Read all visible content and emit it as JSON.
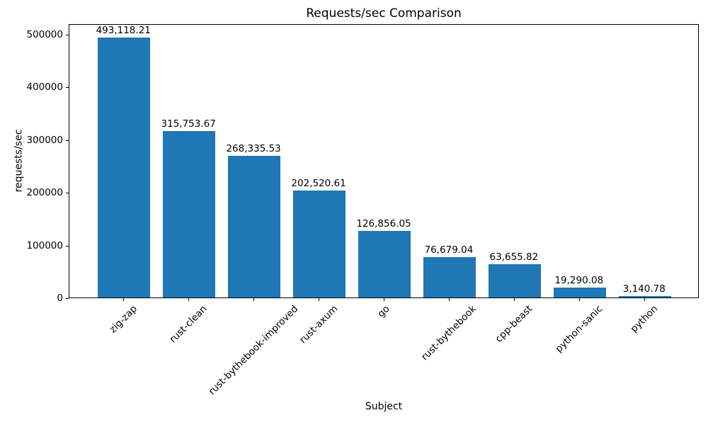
{
  "chart_data": {
    "type": "bar",
    "title": "Requests/sec Comparison",
    "xlabel": "Subject",
    "ylabel": "requests/sec",
    "categories": [
      "zig-zap",
      "rust-clean",
      "rust-bythebook-improved",
      "rust-axum",
      "go",
      "rust-bythebook",
      "cpp-beast",
      "python-sanic",
      "python"
    ],
    "values": [
      493118.21,
      315753.67,
      268335.53,
      202520.61,
      126856.05,
      76679.04,
      63655.82,
      19290.08,
      3140.78
    ],
    "bar_labels": [
      "493,118.21",
      "315,753.67",
      "268,335.53",
      "202,520.61",
      "126,856.05",
      "76,679.04",
      "63,655.82",
      "19,290.08",
      "3,140.78"
    ],
    "yticks": [
      0,
      100000,
      200000,
      300000,
      400000,
      500000
    ],
    "ytick_labels": [
      "0",
      "100000",
      "200000",
      "300000",
      "400000",
      "500000"
    ],
    "ylim": [
      0,
      520000
    ],
    "bar_color": "#1f77b4",
    "grid": false,
    "legend_position": "none",
    "x_tick_rotation_deg": 45,
    "bar_width_fraction": 0.8
  }
}
